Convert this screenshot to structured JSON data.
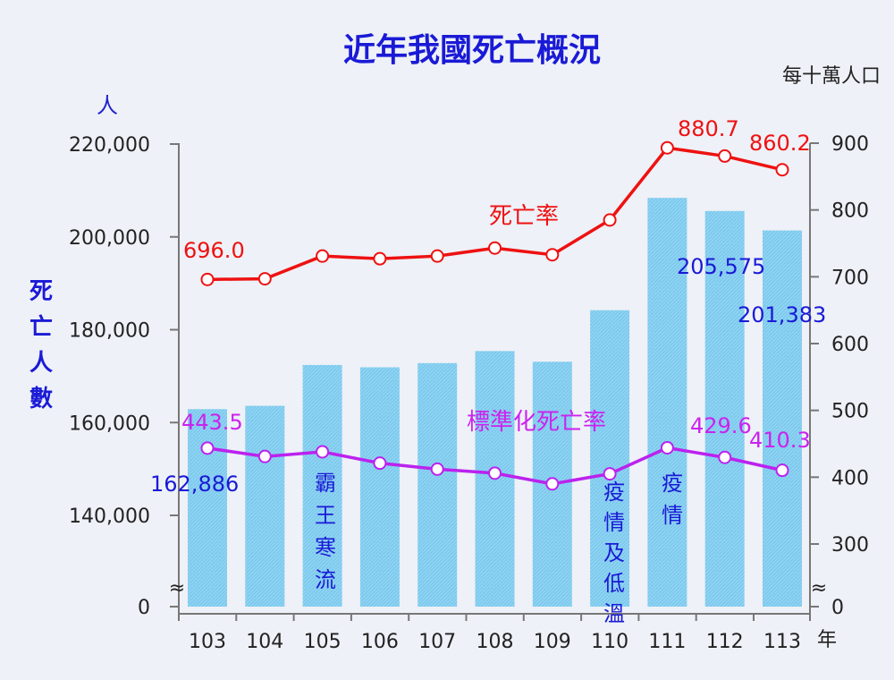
{
  "chart_data": {
    "type": "bar+line",
    "title": "近年我國死亡概況",
    "unit_left": "人",
    "unit_right": "每十萬人口",
    "ylabel_left": [
      "死",
      "亡",
      "人",
      "數"
    ],
    "x_unit": "年",
    "categories": [
      "103",
      "104",
      "105",
      "106",
      "107",
      "108",
      "109",
      "110",
      "111",
      "112",
      "113"
    ],
    "bars": {
      "values": [
        162886,
        163600,
        172400,
        171900,
        172800,
        175400,
        173100,
        184200,
        208400,
        205575,
        201383
      ],
      "color": "#8fd3f2",
      "labels": {
        "0": "162,886",
        "9": "205,575",
        "10": "201,383"
      }
    },
    "left_axis": {
      "ticks": [
        "220,000",
        "200,000",
        "180,000",
        "160,000",
        "140,000",
        "0"
      ],
      "tick_values": [
        220000,
        200000,
        180000,
        160000,
        140000
      ],
      "range": [
        130000,
        220000
      ]
    },
    "right_axis": {
      "ticks": [
        "900",
        "800",
        "700",
        "600",
        "500",
        "400",
        "300",
        "0"
      ],
      "tick_values": [
        900,
        800,
        700,
        600,
        500,
        400,
        300
      ],
      "range": [
        200,
        900
      ]
    },
    "lines": [
      {
        "name": "死亡率",
        "color": "#ee1111",
        "values": [
          696.0,
          697.0,
          731.0,
          727.0,
          731.0,
          743.0,
          733.0,
          785.0,
          893.0,
          880.7,
          860.2
        ],
        "labels": {
          "0": "696.0",
          "9": "880.7",
          "10": "860.2"
        }
      },
      {
        "name": "標準化死亡率",
        "color": "#bb22ee",
        "values": [
          443.5,
          431.0,
          438.0,
          421.0,
          412.0,
          406.0,
          390.0,
          405.0,
          444.0,
          429.6,
          410.3
        ],
        "labels": {
          "0": "443.5",
          "9": "429.6",
          "10": "410.3"
        }
      }
    ],
    "annotations": [
      {
        "category": "105",
        "text": [
          "霸",
          "王",
          "寒",
          "流"
        ]
      },
      {
        "category": "110",
        "text": [
          "疫",
          "情",
          "及",
          "低",
          "溫"
        ]
      },
      {
        "category": "111",
        "text": [
          "疫",
          "情"
        ]
      }
    ],
    "axis_break_symbol": "≈"
  }
}
